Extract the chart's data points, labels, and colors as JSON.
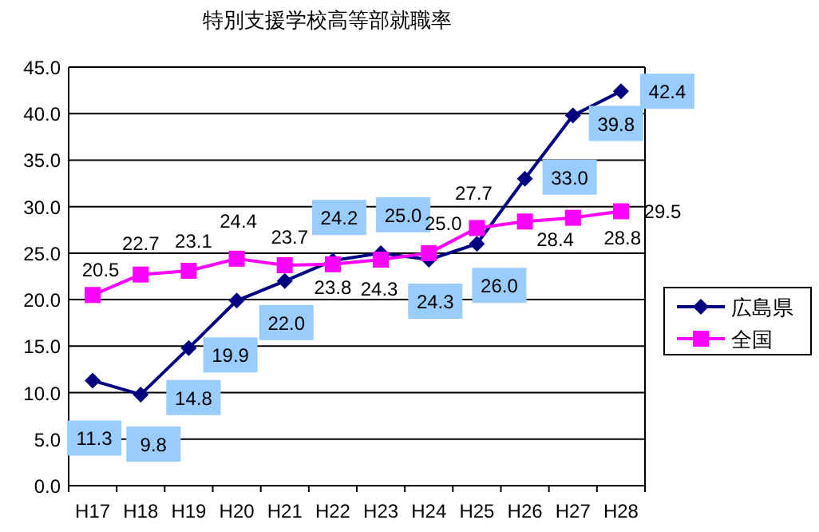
{
  "chart_data": {
    "type": "line",
    "title": "特別支援学校高等部就職率",
    "categories": [
      "H17",
      "H18",
      "H19",
      "H20",
      "H21",
      "H22",
      "H23",
      "H24",
      "H25",
      "H26",
      "H27",
      "H28"
    ],
    "series": [
      {
        "name": "広島県",
        "color": "#000080",
        "marker": "diamond",
        "values": [
          11.3,
          9.8,
          14.8,
          19.9,
          22.0,
          24.2,
          25.0,
          24.3,
          26.0,
          33.0,
          39.8,
          42.4
        ],
        "value_labels": [
          "11.3",
          "9.8",
          "14.8",
          "19.9",
          "22.0",
          "24.2",
          "25.0",
          "24.3",
          "26.0",
          "33.0",
          "39.8",
          "42.4"
        ]
      },
      {
        "name": "全国",
        "color": "#ff00ff",
        "marker": "square",
        "values": [
          20.5,
          22.7,
          23.1,
          24.4,
          23.7,
          23.8,
          24.3,
          25.0,
          27.7,
          28.4,
          28.8,
          29.5
        ],
        "value_labels": [
          "20.5",
          "22.7",
          "23.1",
          "24.4",
          "23.7",
          "23.8",
          "24.3",
          "25.0",
          "27.7",
          "28.4",
          "28.8",
          "29.5"
        ]
      }
    ],
    "ylim": [
      0,
      45
    ],
    "yticks": [
      {
        "value": 0,
        "label": "0.0"
      },
      {
        "value": 5,
        "label": "5.0"
      },
      {
        "value": 10,
        "label": "10.0"
      },
      {
        "value": 15,
        "label": "15.0"
      },
      {
        "value": 20,
        "label": "20.0"
      },
      {
        "value": 25,
        "label": "25.0"
      },
      {
        "value": 30,
        "label": "30.0"
      },
      {
        "value": 35,
        "label": "35.0"
      },
      {
        "value": 40,
        "label": "40.0"
      },
      {
        "value": 45,
        "label": "45.0"
      }
    ],
    "grid": "y",
    "legend": "right"
  }
}
